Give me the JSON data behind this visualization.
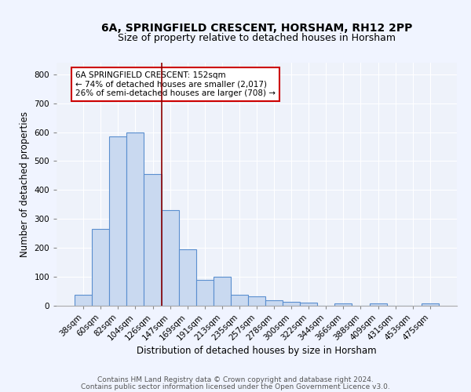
{
  "title1": "6A, SPRINGFIELD CRESCENT, HORSHAM, RH12 2PP",
  "title2": "Size of property relative to detached houses in Horsham",
  "xlabel": "Distribution of detached houses by size in Horsham",
  "ylabel": "Number of detached properties",
  "categories": [
    "38sqm",
    "60sqm",
    "82sqm",
    "104sqm",
    "126sqm",
    "147sqm",
    "169sqm",
    "191sqm",
    "213sqm",
    "235sqm",
    "257sqm",
    "278sqm",
    "300sqm",
    "322sqm",
    "344sqm",
    "366sqm",
    "388sqm",
    "409sqm",
    "431sqm",
    "453sqm",
    "475sqm"
  ],
  "values": [
    38,
    265,
    585,
    600,
    455,
    330,
    195,
    90,
    100,
    38,
    33,
    20,
    14,
    10,
    0,
    8,
    0,
    8,
    0,
    0,
    8
  ],
  "bar_color": "#c9d9f0",
  "bar_edge_color": "#5b8fcf",
  "vline_color": "#8b0000",
  "annotation_text": "6A SPRINGFIELD CRESCENT: 152sqm\n← 74% of detached houses are smaller (2,017)\n26% of semi-detached houses are larger (708) →",
  "annotation_box_color": "#ffffff",
  "annotation_box_edge": "#cc0000",
  "ylim": [
    0,
    840
  ],
  "yticks": [
    0,
    100,
    200,
    300,
    400,
    500,
    600,
    700,
    800
  ],
  "footnote1": "Contains HM Land Registry data © Crown copyright and database right 2024.",
  "footnote2": "Contains public sector information licensed under the Open Government Licence v3.0.",
  "bg_color": "#eef2fa",
  "grid_color": "#ffffff",
  "title1_fontsize": 10,
  "title2_fontsize": 9,
  "axis_label_fontsize": 8.5,
  "tick_fontsize": 7.5,
  "annotation_fontsize": 7.5,
  "footnote_fontsize": 6.5
}
